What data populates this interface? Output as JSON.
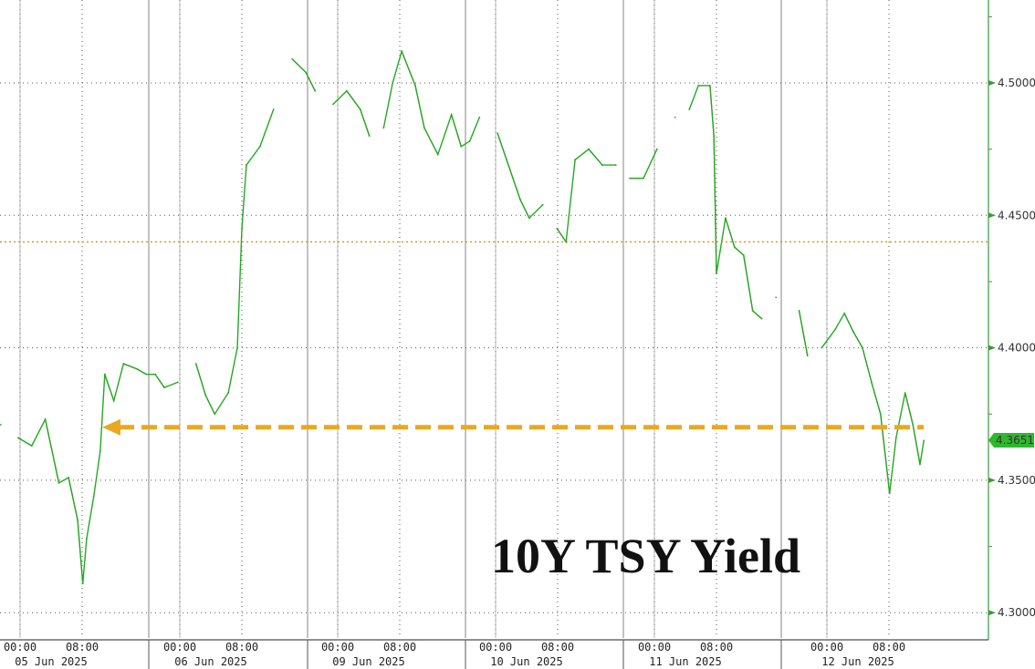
{
  "chart_data": {
    "type": "line",
    "title": "10Y TSY Yield",
    "ylim": [
      4.285,
      4.53
    ],
    "y_ticks": [
      "4.5000",
      "4.4500",
      "4.4000",
      "4.3500",
      "4.3000"
    ],
    "y_axis_position": "right",
    "grid": true,
    "last_value_label": "4.3651",
    "reference_line": 4.44,
    "arrow_level": 4.37,
    "x_day_labels": [
      "05 Jun 2025",
      "06 Jun 2025",
      "09 Jun 2025",
      "10 Jun 2025",
      "11 Jun 2025",
      "12 Jun 2025"
    ],
    "x_hour_labels": [
      "00:00",
      "08:00"
    ],
    "colors": {
      "line": "#22aa22",
      "down": "#b02020",
      "axis": "#3a9a3a",
      "reference": "#e08a00",
      "arrow": "#e8a820",
      "last_label_bg": "#2eb82e"
    },
    "series": [
      [
        "06-04 21:30",
        4.371
      ],
      [
        "06-04 23:45",
        4.366
      ],
      [
        "06-05 01:30",
        4.363
      ],
      [
        "06-05 03:15",
        4.373
      ],
      [
        "06-05 05:00",
        4.349
      ],
      [
        "06-05 06:15",
        4.351
      ],
      [
        "06-05 07:25",
        4.335
      ],
      [
        "06-05 08:05",
        4.311
      ],
      [
        "06-05 08:35",
        4.328
      ],
      [
        "06-05 09:30",
        4.344
      ],
      [
        "06-05 10:20",
        4.361
      ],
      [
        "06-05 10:55",
        4.39
      ],
      [
        "06-05 12:05",
        4.38
      ],
      [
        "06-05 13:20",
        4.394
      ],
      [
        "06-05 15:05",
        4.392
      ],
      [
        "06-05 16:15",
        4.39
      ],
      [
        "06-05 20:50",
        4.39
      ],
      [
        "06-05 22:00",
        4.385
      ],
      [
        "06-05 23:45",
        4.387
      ],
      [
        "06-06 02:05",
        4.394
      ],
      [
        "06-06 03:20",
        4.382
      ],
      [
        "06-06 04:30",
        4.375
      ],
      [
        "06-06 06:15",
        4.383
      ],
      [
        "06-06 07:25",
        4.4
      ],
      [
        "06-06 08:00",
        4.445
      ],
      [
        "06-06 08:35",
        4.469
      ],
      [
        "06-06 10:20",
        4.476
      ],
      [
        "06-06 12:05",
        4.49
      ],
      [
        "06-06 14:30",
        4.509
      ],
      [
        "06-06 16:15",
        4.504
      ],
      [
        "06-08 21:05",
        4.497
      ],
      [
        "06-08 23:25",
        4.492
      ],
      [
        "06-09 01:10",
        4.497
      ],
      [
        "06-09 02:55",
        4.49
      ],
      [
        "06-09 04:05",
        4.48
      ],
      [
        "06-09 05:55",
        4.483
      ],
      [
        "06-09 07:05",
        4.5
      ],
      [
        "06-09 08:15",
        4.512
      ],
      [
        "06-09 10:00",
        4.499
      ],
      [
        "06-09 11:10",
        4.483
      ],
      [
        "06-09 12:55",
        4.473
      ],
      [
        "06-09 14:40",
        4.488
      ],
      [
        "06-09 15:55",
        4.476
      ],
      [
        "06-09 20:40",
        4.478
      ],
      [
        "06-09 21:55",
        4.487
      ],
      [
        "06-10 00:15",
        4.481
      ],
      [
        "06-10 01:25",
        4.471
      ],
      [
        "06-10 03:10",
        4.456
      ],
      [
        "06-10 04:20",
        4.449
      ],
      [
        "06-10 06:05",
        4.454
      ],
      [
        "06-10 07:55",
        4.445
      ],
      [
        "06-10 09:05",
        4.44
      ],
      [
        "06-10 10:15",
        4.471
      ],
      [
        "06-10 12:00",
        4.475
      ],
      [
        "06-10 13:45",
        4.469
      ],
      [
        "06-10 15:30",
        4.469
      ],
      [
        "06-10 20:50",
        4.464
      ],
      [
        "06-10 22:35",
        4.464
      ],
      [
        "06-11 00:20",
        4.475
      ],
      [
        "06-11 02:40",
        4.487
      ],
      [
        "06-11 04:30",
        4.49
      ],
      [
        "06-11 05:40",
        4.499
      ],
      [
        "06-11 07:10",
        4.499
      ],
      [
        "06-11 07:40",
        4.48
      ],
      [
        "06-11 08:00",
        4.428
      ],
      [
        "06-11 09:10",
        4.449
      ],
      [
        "06-11 10:20",
        4.438
      ],
      [
        "06-11 11:30",
        4.435
      ],
      [
        "06-11 12:40",
        4.414
      ],
      [
        "06-11 13:50",
        4.411
      ],
      [
        "06-11 15:40",
        4.419
      ],
      [
        "06-11 20:25",
        4.414
      ],
      [
        "06-11 21:30",
        4.397
      ],
      [
        "06-11 23:20",
        4.4
      ],
      [
        "06-12 01:05",
        4.407
      ],
      [
        "06-12 02:15",
        4.413
      ],
      [
        "06-12 03:25",
        4.406
      ],
      [
        "06-12 04:35",
        4.4
      ],
      [
        "06-12 05:45",
        4.387
      ],
      [
        "06-12 06:55",
        4.375
      ],
      [
        "06-12 08:05",
        4.345
      ],
      [
        "06-12 08:55",
        4.366
      ],
      [
        "06-12 10:05",
        4.383
      ],
      [
        "06-12 11:05",
        4.371
      ],
      [
        "06-12 12:00",
        4.356
      ],
      [
        "06-12 12:30",
        4.365
      ]
    ]
  }
}
